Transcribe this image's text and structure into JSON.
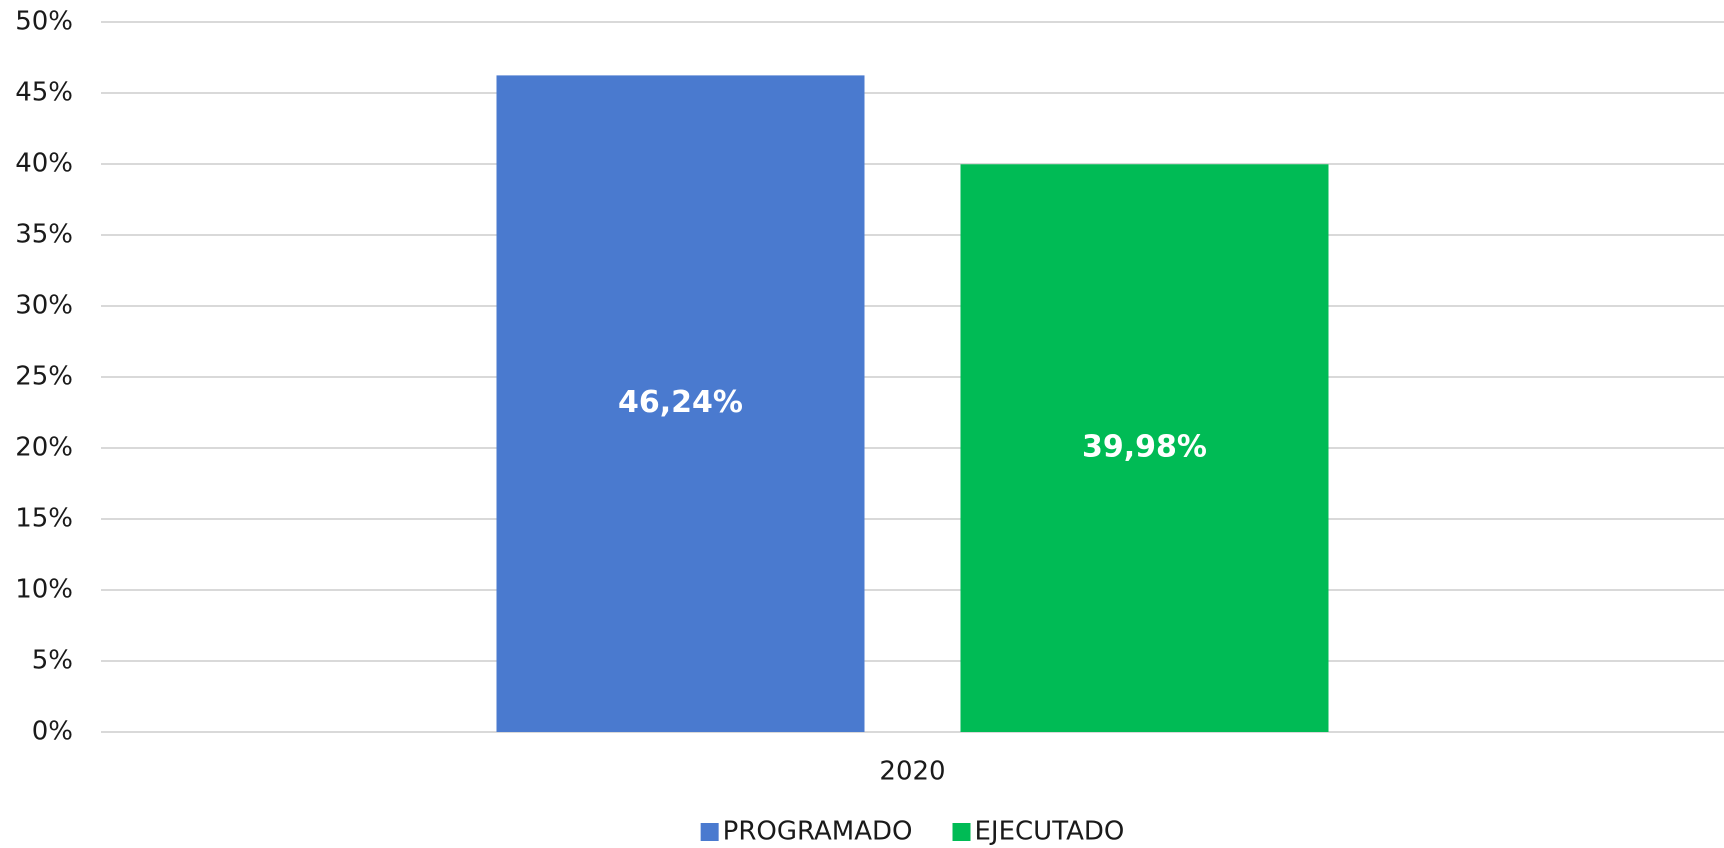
{
  "chart_data": {
    "type": "bar",
    "categories": [
      "2020"
    ],
    "series": [
      {
        "name": "PROGRAMADO",
        "color": "#4a7acf",
        "values": [
          46.24
        ],
        "value_labels": [
          "46,24%"
        ]
      },
      {
        "name": "EJECUTADO",
        "color": "#00bb55",
        "values": [
          39.98
        ],
        "value_labels": [
          "39,98%"
        ]
      }
    ],
    "ylim": [
      0,
      50
    ],
    "yticks": [
      {
        "value": 0,
        "label": "0%"
      },
      {
        "value": 5,
        "label": "5%"
      },
      {
        "value": 10,
        "label": "10%"
      },
      {
        "value": 15,
        "label": "15%"
      },
      {
        "value": 20,
        "label": "20%"
      },
      {
        "value": 25,
        "label": "25%"
      },
      {
        "value": 30,
        "label": "30%"
      },
      {
        "value": 35,
        "label": "35%"
      },
      {
        "value": 40,
        "label": "40%"
      },
      {
        "value": 45,
        "label": "45%"
      },
      {
        "value": 50,
        "label": "50%"
      }
    ],
    "grid": true,
    "legend": "bottom"
  }
}
